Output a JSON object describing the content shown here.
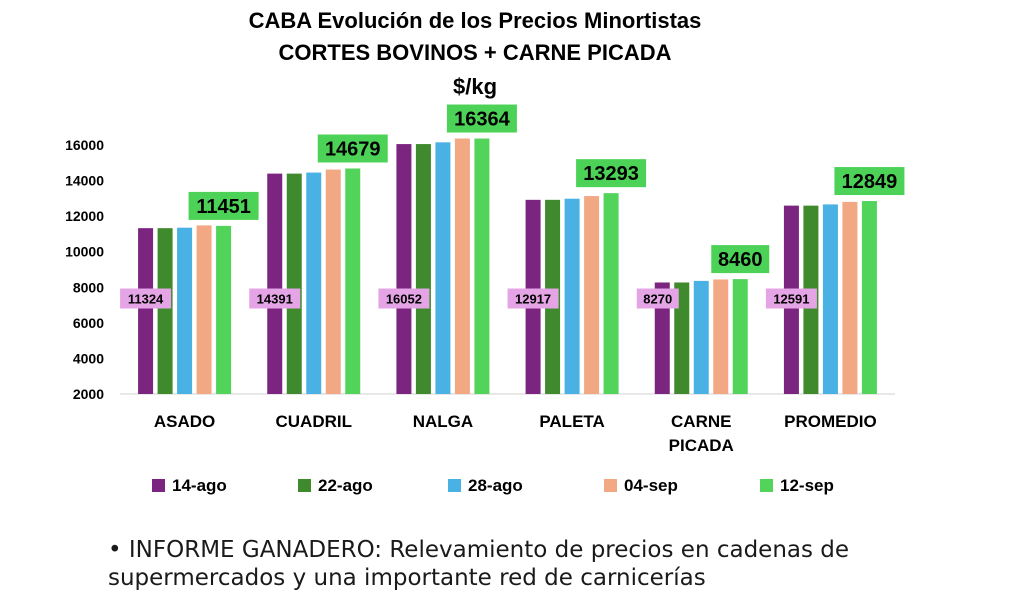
{
  "chart_data": {
    "type": "bar",
    "title": "CABA Evolución de los Precios Minortistas",
    "subtitle": "CORTES BOVINOS + CARNE PICADA",
    "ylabel": "$/kg",
    "categories": [
      "ASADO",
      "CUADRIL",
      "NALGA",
      "PALETA",
      "CARNE PICADA",
      "PROMEDIO"
    ],
    "series": [
      {
        "name": "14-ago",
        "color": "#7b2480",
        "values": [
          11324,
          14391,
          16052,
          12917,
          8270,
          12591
        ]
      },
      {
        "name": "22-ago",
        "color": "#3f8a2d",
        "values": [
          11324,
          14391,
          16052,
          12917,
          8270,
          12591
        ]
      },
      {
        "name": "28-ago",
        "color": "#4ab1e5",
        "values": [
          11350,
          14450,
          16150,
          12980,
          8360,
          12660
        ]
      },
      {
        "name": "04-sep",
        "color": "#f2a983",
        "values": [
          11480,
          14620,
          16364,
          13130,
          8440,
          12800
        ]
      },
      {
        "name": "12-sep",
        "color": "#52d35a",
        "values": [
          11451,
          14679,
          16364,
          13293,
          8460,
          12849
        ]
      }
    ],
    "data_labels_first": [
      "11324",
      "14391",
      "16052",
      "12917",
      "8270",
      "12591"
    ],
    "data_labels_last": [
      "11451",
      "14679",
      "16364",
      "13293",
      "8460",
      "12849"
    ],
    "label_colors": {
      "first_bg": "#e5a4e6",
      "last_bg": "#4cd357"
    },
    "ylim": [
      2000,
      16000
    ],
    "yticks": [
      "2000",
      "4000",
      "6000",
      "8000",
      "10000",
      "12000",
      "14000",
      "16000"
    ],
    "grid": false,
    "legend_position": "bottom"
  },
  "footer": {
    "bullet": "•",
    "text": "INFORME GANADERO: Relevamiento de precios en cadenas de supermercados y una importante red de carnicerías"
  }
}
